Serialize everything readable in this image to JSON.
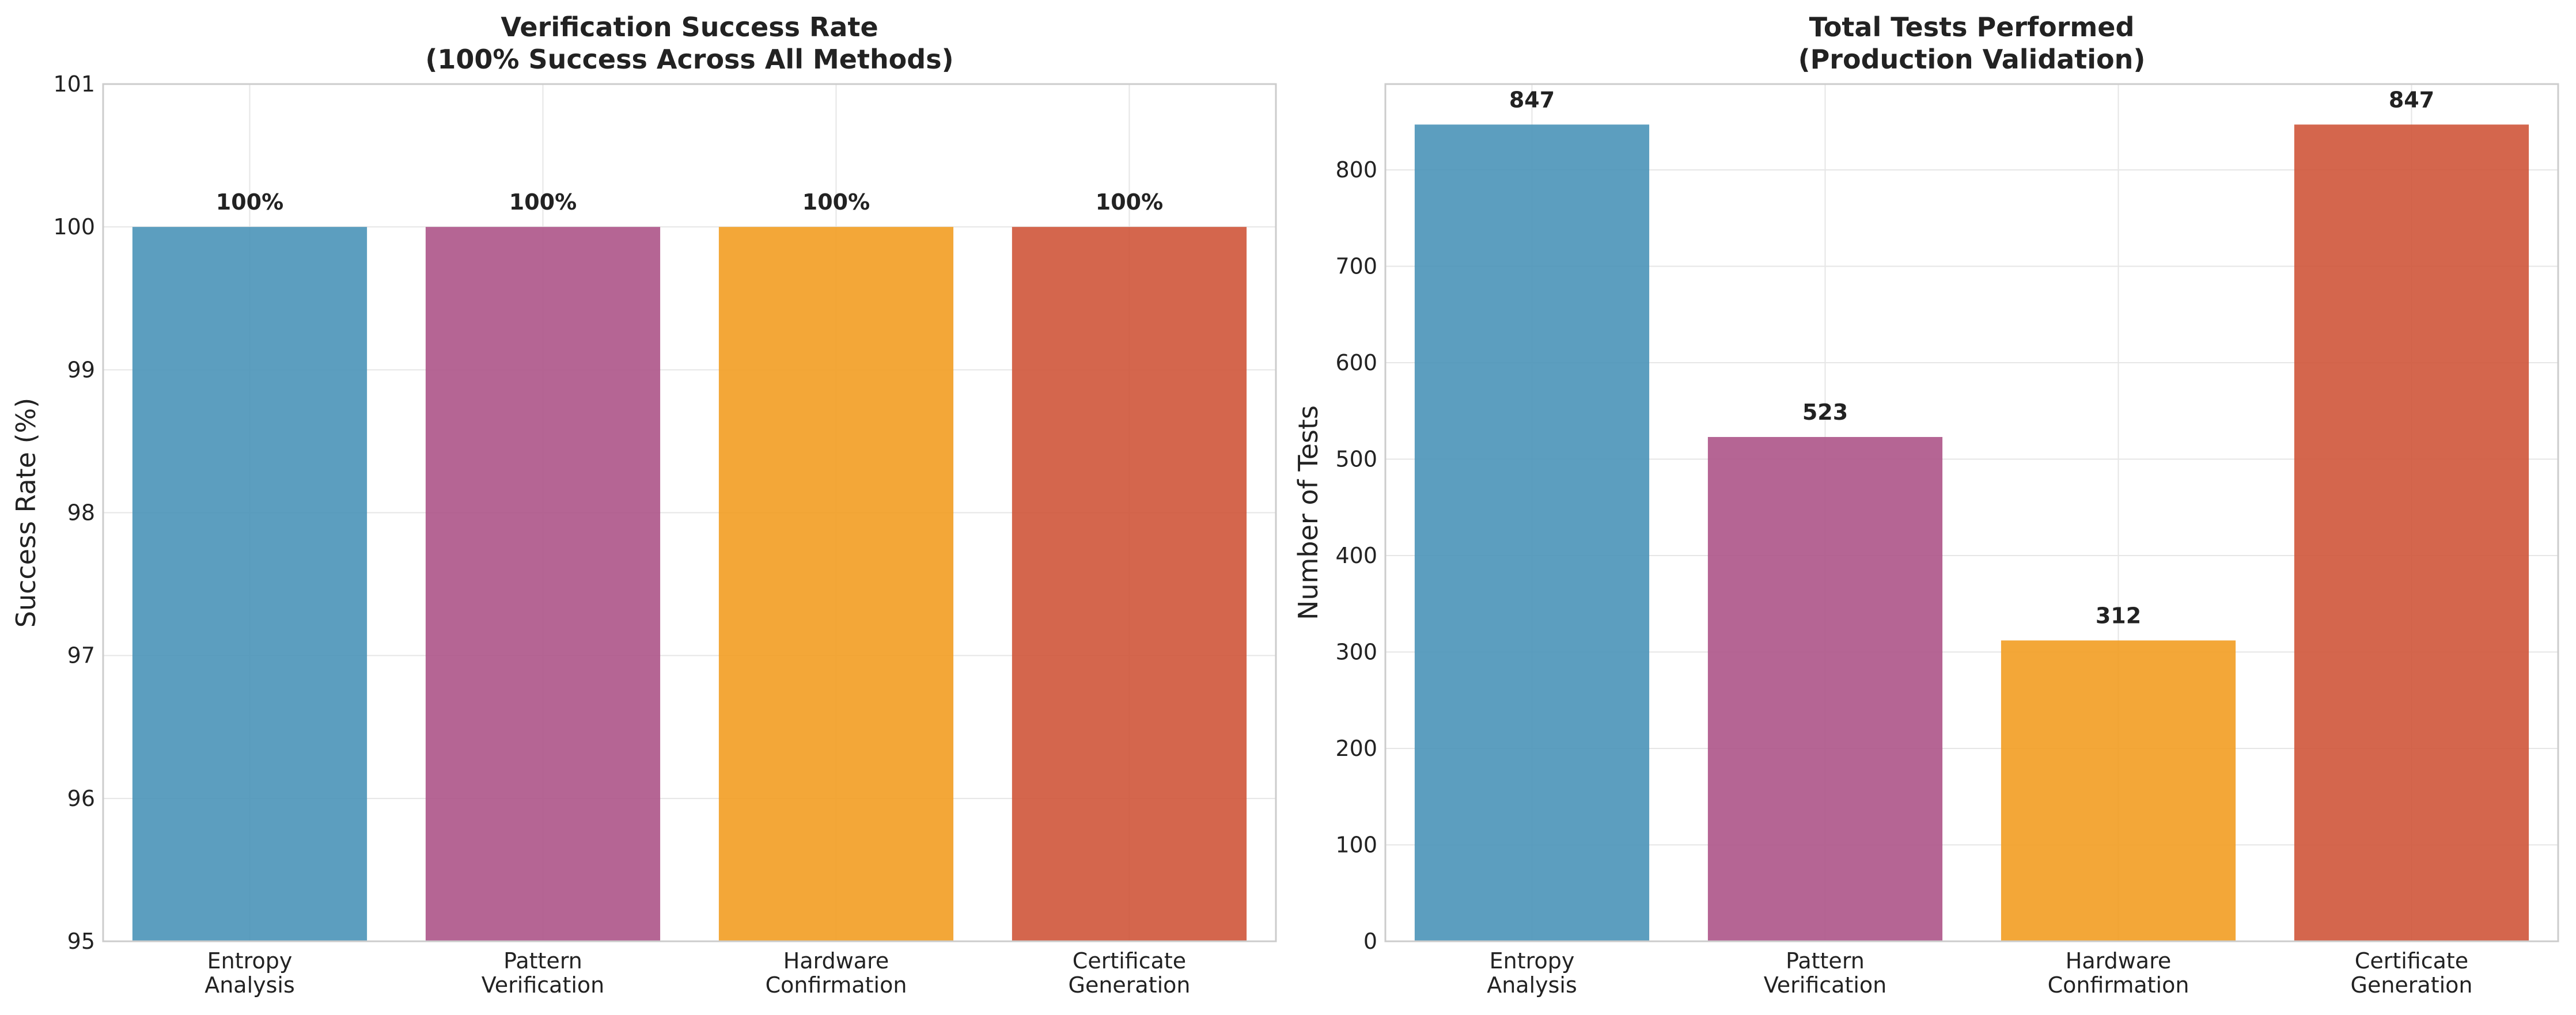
{
  "chart_data": [
    {
      "type": "bar",
      "title_lines": [
        "Verification Success Rate",
        "(100% Success Across All Methods)"
      ],
      "xlabel": "",
      "ylabel": "Success Rate (%)",
      "ylim": [
        95,
        101
      ],
      "yticks": [
        95,
        96,
        97,
        98,
        99,
        100,
        101
      ],
      "categories": [
        [
          "Entropy",
          "Analysis"
        ],
        [
          "Pattern",
          "Verification"
        ],
        [
          "Hardware",
          "Confirmation"
        ],
        [
          "Certificate",
          "Generation"
        ]
      ],
      "values": [
        100,
        100,
        100,
        100
      ],
      "value_labels": [
        "100%",
        "100%",
        "100%",
        "100%"
      ],
      "colors": [
        "#4a93b8",
        "#ad5488",
        "#f29d22",
        "#cf553a"
      ],
      "grid": true,
      "legend": "none"
    },
    {
      "type": "bar",
      "title_lines": [
        "Total Tests Performed",
        "(Production Validation)"
      ],
      "xlabel": "",
      "ylabel": "Number of Tests",
      "ylim": [
        0,
        889
      ],
      "yticks": [
        0,
        100,
        200,
        300,
        400,
        500,
        600,
        700,
        800
      ],
      "categories": [
        [
          "Entropy",
          "Analysis"
        ],
        [
          "Pattern",
          "Verification"
        ],
        [
          "Hardware",
          "Confirmation"
        ],
        [
          "Certificate",
          "Generation"
        ]
      ],
      "values": [
        847,
        523,
        312,
        847
      ],
      "value_labels": [
        "847",
        "523",
        "312",
        "847"
      ],
      "colors": [
        "#4a93b8",
        "#ad5488",
        "#f29d22",
        "#cf553a"
      ],
      "grid": true,
      "legend": "none"
    }
  ]
}
